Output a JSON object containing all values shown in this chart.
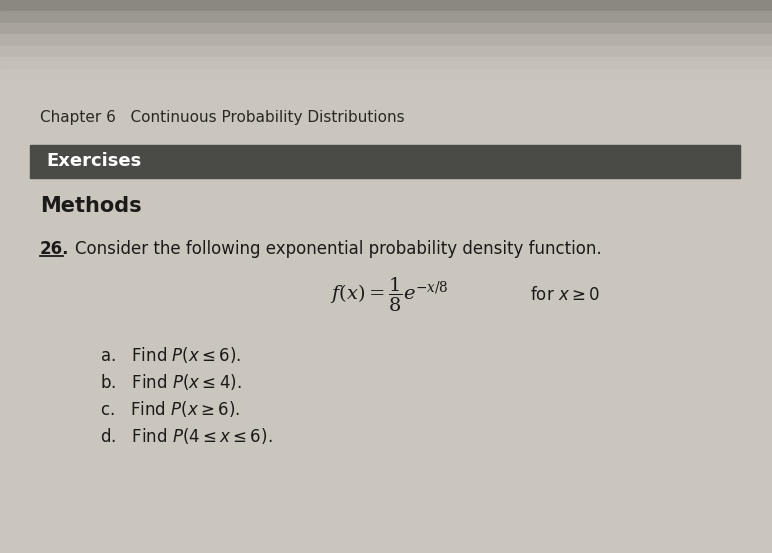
{
  "chapter_line": "Chapter 6   Continuous Probability Distributions",
  "exercises_label": "Exercises",
  "methods_label": "Methods",
  "problem_number": "26.",
  "problem_text": "Consider the following exponential probability density function.",
  "parts": [
    "a.  Find $P(x \\leq 6)$.",
    "b.  Find $P(x \\leq 4)$.",
    "c.  Find $P(x \\geq 6)$.",
    "d.  Find $P(4 \\leq x \\leq 6)$."
  ],
  "page_bg_top": "#b0aba3",
  "page_bg_bottom": "#ccc8c0",
  "page_bg_main": "#c8c4bc",
  "exercises_bg": "#4a4a46",
  "exercises_text_color": "#ffffff",
  "text_color": "#1c1a18",
  "chapter_color": "#2a2820"
}
